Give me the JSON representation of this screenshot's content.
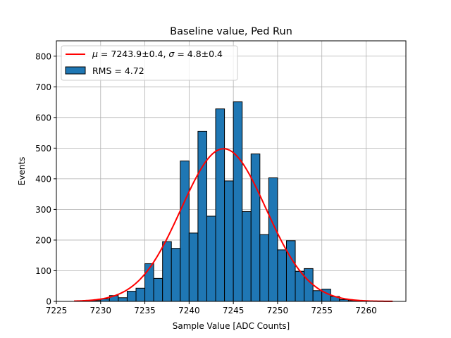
{
  "chart_data": {
    "type": "bar",
    "title": "Baseline value, Ped Run",
    "xlabel": "Sample Value [ADC Counts]",
    "ylabel": "Events",
    "xlim": [
      7225,
      7264.5
    ],
    "ylim": [
      0,
      850
    ],
    "xticks": [
      7225,
      7230,
      7235,
      7240,
      7245,
      7250,
      7255,
      7260
    ],
    "yticks": [
      0,
      100,
      200,
      300,
      400,
      500,
      600,
      700,
      800
    ],
    "grid": true,
    "legend_position": "top-left",
    "bin_width": 1,
    "bins": [
      {
        "x": 7229.5,
        "value": 3
      },
      {
        "x": 7230.5,
        "value": 8
      },
      {
        "x": 7231.5,
        "value": 19
      },
      {
        "x": 7232.5,
        "value": 12
      },
      {
        "x": 7233.5,
        "value": 33
      },
      {
        "x": 7234.5,
        "value": 43
      },
      {
        "x": 7235.5,
        "value": 123
      },
      {
        "x": 7236.5,
        "value": 75
      },
      {
        "x": 7237.5,
        "value": 195
      },
      {
        "x": 7238.5,
        "value": 173
      },
      {
        "x": 7239.5,
        "value": 458
      },
      {
        "x": 7240.5,
        "value": 223
      },
      {
        "x": 7241.5,
        "value": 555
      },
      {
        "x": 7242.5,
        "value": 278
      },
      {
        "x": 7243.5,
        "value": 628
      },
      {
        "x": 7244.5,
        "value": 393
      },
      {
        "x": 7245.5,
        "value": 651
      },
      {
        "x": 7246.5,
        "value": 293
      },
      {
        "x": 7247.5,
        "value": 481
      },
      {
        "x": 7248.5,
        "value": 218
      },
      {
        "x": 7249.5,
        "value": 403
      },
      {
        "x": 7250.5,
        "value": 168
      },
      {
        "x": 7251.5,
        "value": 198
      },
      {
        "x": 7252.5,
        "value": 98
      },
      {
        "x": 7253.5,
        "value": 107
      },
      {
        "x": 7254.5,
        "value": 35
      },
      {
        "x": 7255.5,
        "value": 40
      },
      {
        "x": 7256.5,
        "value": 16
      },
      {
        "x": 7257.5,
        "value": 6
      },
      {
        "x": 7258.5,
        "value": 3
      },
      {
        "x": 7259.5,
        "value": 2
      }
    ],
    "fit": {
      "type": "gaussian",
      "mu": 7243.9,
      "sigma": 4.8,
      "amplitude": 498,
      "x_range": [
        7227,
        7263
      ]
    },
    "series": [
      {
        "name": "μ = 7243.9±0.4, σ = 4.8±0.4",
        "kind": "line",
        "color": "#ff0000"
      },
      {
        "name": "RMS = 4.72",
        "kind": "bar",
        "color": "#1f77b4"
      }
    ],
    "legend": {
      "fit_label_parts": [
        "μ",
        " = 7243.9±0.4, ",
        "σ",
        " = 4.8±0.4"
      ],
      "hist_label": "RMS = 4.72"
    }
  }
}
